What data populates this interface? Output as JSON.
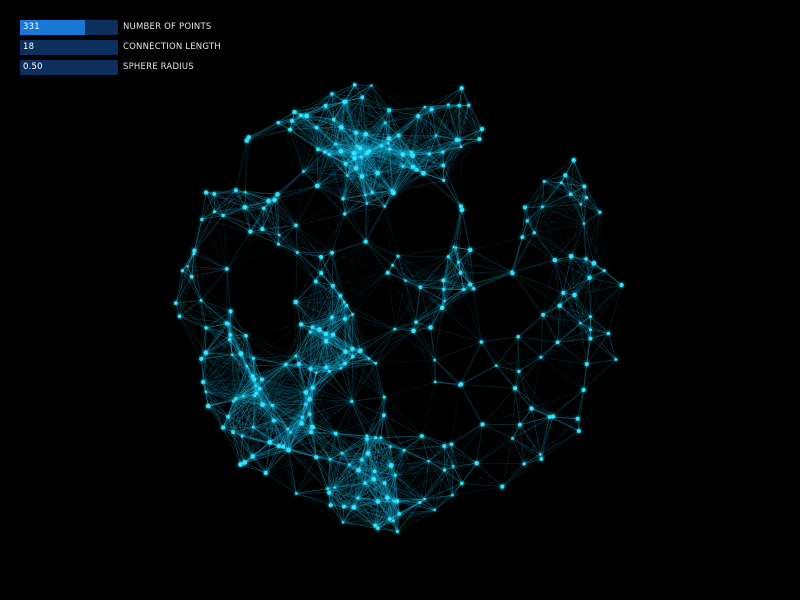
{
  "controls": [
    {
      "value_text": "331",
      "label": "NUMBER OF POINTS",
      "fill_fraction": 0.66
    },
    {
      "value_text": "18",
      "label": "CONNECTION LENGTH",
      "fill_fraction": 0.0
    },
    {
      "value_text": "0.50",
      "label": "SPHERE RADIUS",
      "fill_fraction": 0.0
    }
  ],
  "colors": {
    "background": "#000000",
    "point": "#2ee6ff",
    "line": "#18b4dc",
    "slider_track": "#0c2f5e",
    "slider_fill": "#1878d8"
  }
}
